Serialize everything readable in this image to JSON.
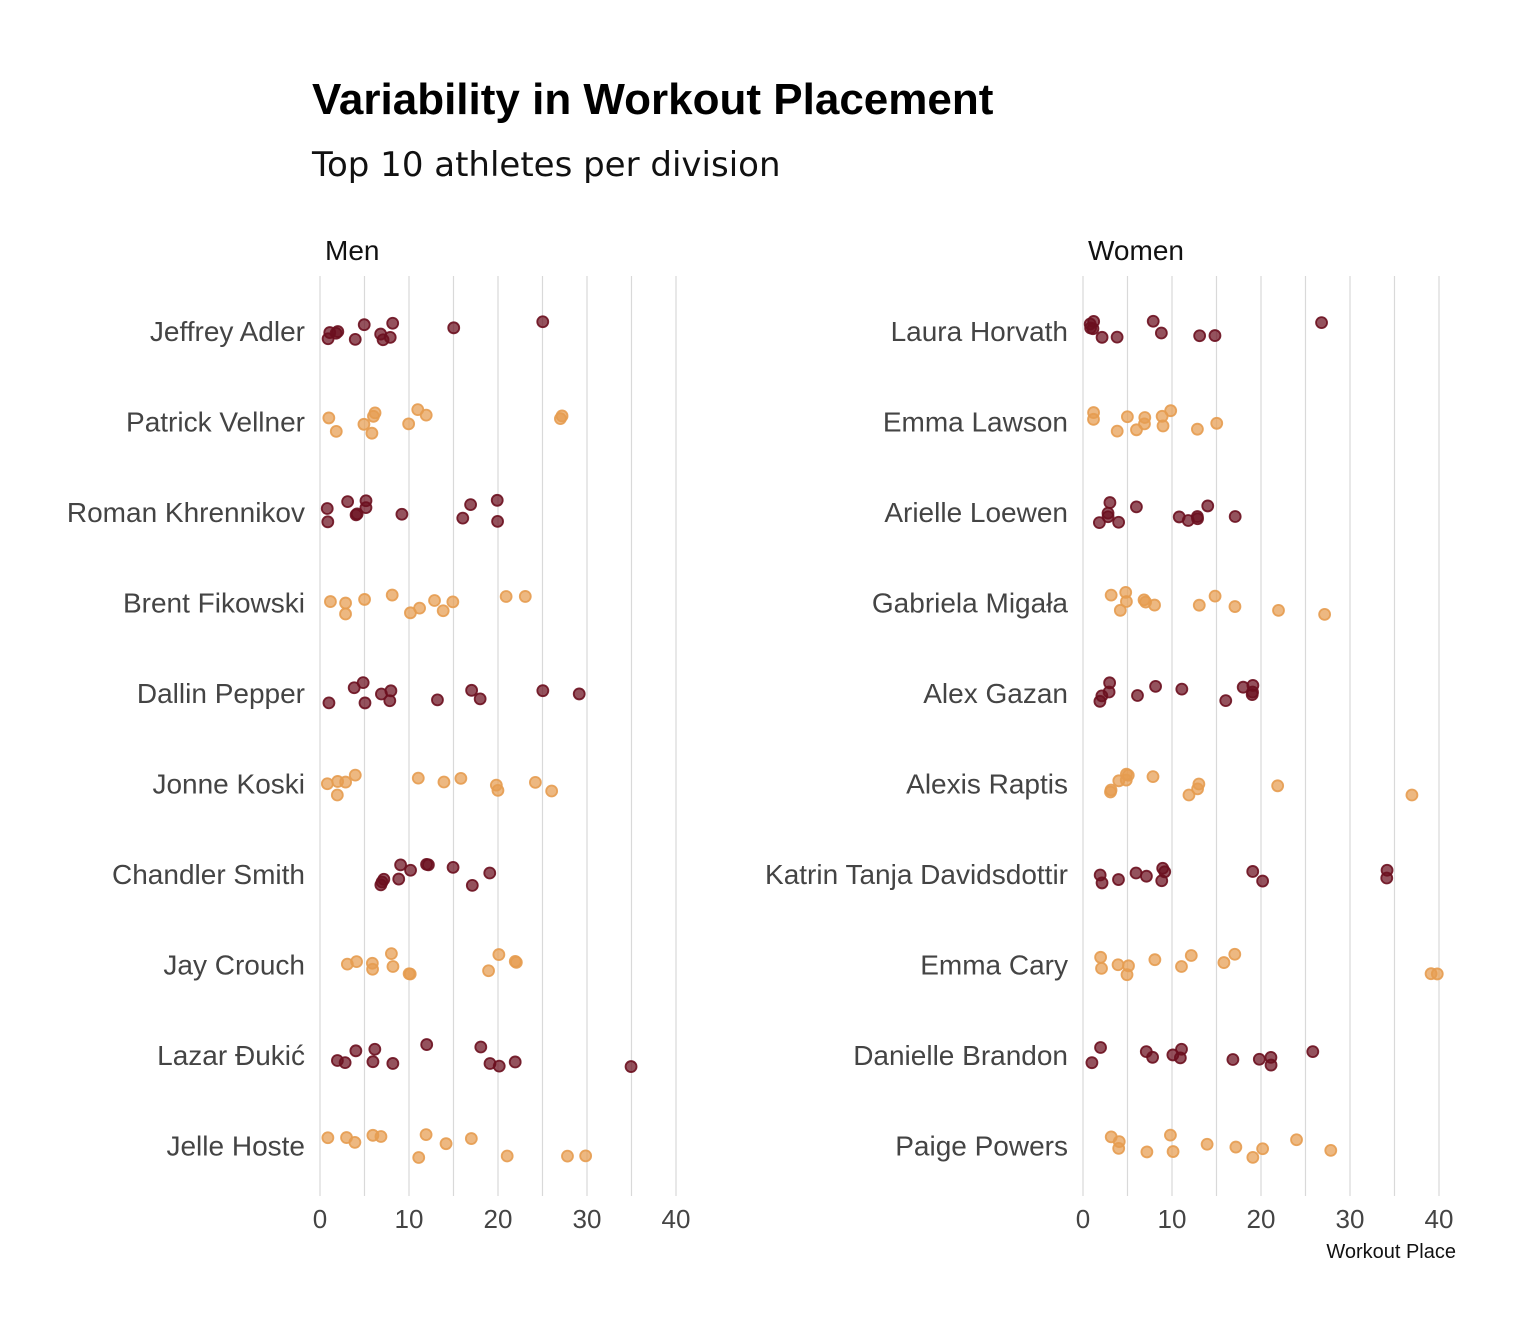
{
  "chart_data": {
    "type": "scatter",
    "title": "Variability in Workout Placement",
    "subtitle": "Top 10 athletes per division",
    "xlabel": "Workout Place",
    "xlim": [
      0,
      40
    ],
    "x_ticks": [
      "0",
      "10",
      "20",
      "30",
      "40"
    ],
    "grid": "vertical",
    "colors": {
      "dark": "#6b0f1f",
      "light": "#e69c50",
      "grid": "#d9d9d9"
    },
    "panels": [
      {
        "name": "Men",
        "athletes": [
          {
            "name": "Jeffrey Adler",
            "color": "dark",
            "places": [
              1,
              1,
              2,
              2,
              4,
              5,
              7,
              7,
              8,
              8,
              15,
              25
            ]
          },
          {
            "name": "Patrick Vellner",
            "color": "light",
            "places": [
              1,
              2,
              5,
              6,
              6,
              6,
              10,
              11,
              12,
              27,
              27
            ]
          },
          {
            "name": "Roman Khrennikov",
            "color": "dark",
            "places": [
              1,
              1,
              3,
              4,
              4,
              5,
              5,
              9,
              16,
              17,
              20,
              20
            ]
          },
          {
            "name": "Brent Fikowski",
            "color": "light",
            "places": [
              1,
              3,
              3,
              5,
              8,
              10,
              11,
              13,
              14,
              15,
              21,
              23
            ]
          },
          {
            "name": "Dallin Pepper",
            "color": "dark",
            "places": [
              1,
              4,
              5,
              5,
              7,
              8,
              8,
              13,
              17,
              18,
              25,
              29
            ]
          },
          {
            "name": "Jonne Koski",
            "color": "light",
            "places": [
              1,
              2,
              2,
              3,
              4,
              11,
              14,
              16,
              20,
              20,
              24,
              26
            ]
          },
          {
            "name": "Chandler Smith",
            "color": "dark",
            "places": [
              7,
              7,
              7,
              9,
              9,
              10,
              12,
              12,
              15,
              17,
              19
            ]
          },
          {
            "name": "Jay Crouch",
            "color": "light",
            "places": [
              3,
              4,
              6,
              6,
              8,
              8,
              10,
              10,
              19,
              20,
              22,
              22
            ]
          },
          {
            "name": "Lazar Đukić",
            "color": "dark",
            "places": [
              2,
              3,
              4,
              6,
              6,
              8,
              12,
              18,
              19,
              20,
              22,
              35
            ]
          },
          {
            "name": "Jelle Hoste",
            "color": "light",
            "places": [
              1,
              3,
              4,
              6,
              7,
              11,
              12,
              14,
              17,
              21,
              28,
              30
            ]
          }
        ]
      },
      {
        "name": "Women",
        "athletes": [
          {
            "name": "Laura Horvath",
            "color": "dark",
            "places": [
              1,
              1,
              1,
              1,
              2,
              4,
              8,
              9,
              13,
              15,
              27
            ]
          },
          {
            "name": "Emma Lawson",
            "color": "light",
            "places": [
              1,
              1,
              4,
              5,
              6,
              7,
              7,
              9,
              9,
              10,
              13,
              15
            ]
          },
          {
            "name": "Arielle Loewen",
            "color": "dark",
            "places": [
              2,
              3,
              3,
              3,
              4,
              6,
              11,
              12,
              13,
              13,
              14,
              17
            ]
          },
          {
            "name": "Gabriela Migała",
            "color": "light",
            "places": [
              3,
              4,
              5,
              5,
              7,
              7,
              8,
              13,
              15,
              17,
              22,
              27
            ]
          },
          {
            "name": "Alex Gazan",
            "color": "dark",
            "places": [
              2,
              2,
              3,
              3,
              6,
              8,
              11,
              16,
              18,
              19,
              19,
              19
            ]
          },
          {
            "name": "Alexis Raptis",
            "color": "light",
            "places": [
              3,
              3,
              4,
              5,
              5,
              5,
              8,
              12,
              13,
              13,
              22,
              37
            ]
          },
          {
            "name": "Katrin Tanja Davidsdottir",
            "color": "dark",
            "places": [
              2,
              2,
              4,
              6,
              7,
              9,
              9,
              9,
              19,
              20,
              34,
              34
            ]
          },
          {
            "name": "Emma Cary",
            "color": "light",
            "places": [
              2,
              2,
              4,
              5,
              5,
              8,
              11,
              12,
              16,
              17,
              39,
              40
            ]
          },
          {
            "name": "Danielle Brandon",
            "color": "dark",
            "places": [
              1,
              2,
              7,
              8,
              10,
              11,
              11,
              17,
              20,
              21,
              21,
              26
            ]
          },
          {
            "name": "Paige Powers",
            "color": "light",
            "places": [
              3,
              4,
              4,
              7,
              10,
              10,
              14,
              17,
              19,
              20,
              24,
              28
            ]
          }
        ]
      }
    ]
  }
}
